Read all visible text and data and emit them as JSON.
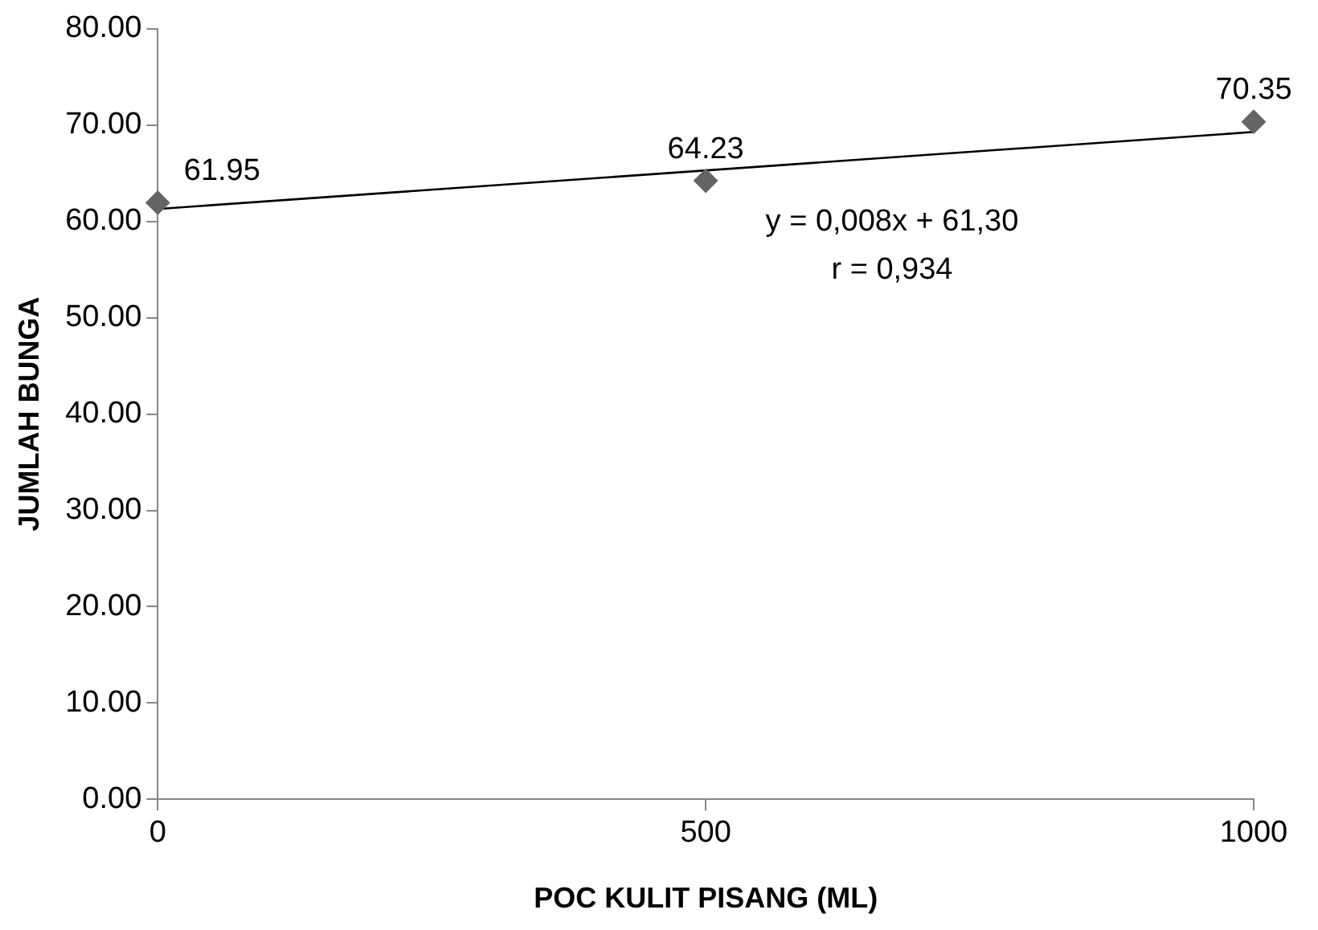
{
  "chart_data": {
    "type": "scatter",
    "xlabel": "POC KULIT PISANG (ML)",
    "ylabel": "JUMLAH BUNGA",
    "xlim": [
      0,
      1000
    ],
    "xticks": [
      0,
      500,
      1000
    ],
    "ylim": [
      0,
      80
    ],
    "yticks": [
      {
        "value": 0,
        "label": "0.00"
      },
      {
        "value": 10,
        "label": "10.00"
      },
      {
        "value": 20,
        "label": "20.00"
      },
      {
        "value": 30,
        "label": "30.00"
      },
      {
        "value": 40,
        "label": "40.00"
      },
      {
        "value": 50,
        "label": "50.00"
      },
      {
        "value": 60,
        "label": "60.00"
      },
      {
        "value": 70,
        "label": "70.00"
      },
      {
        "value": 80,
        "label": "80.00"
      }
    ],
    "grid": false,
    "legend": false,
    "series": [
      {
        "type": "scatter",
        "color": "#646464",
        "marker": "diamond",
        "x": [
          0,
          500,
          1000
        ],
        "values": [
          61.95,
          64.23,
          70.35
        ],
        "value_labels": [
          "61.95",
          "64.23",
          "70.35"
        ]
      },
      {
        "type": "line",
        "color": "#000000",
        "marker": "none",
        "line_style": "solid",
        "x": [
          0,
          1000
        ],
        "values": [
          61.3,
          69.3
        ]
      }
    ],
    "annotations": [
      "y = 0,008x + 61,30",
      "r = 0,934"
    ]
  }
}
